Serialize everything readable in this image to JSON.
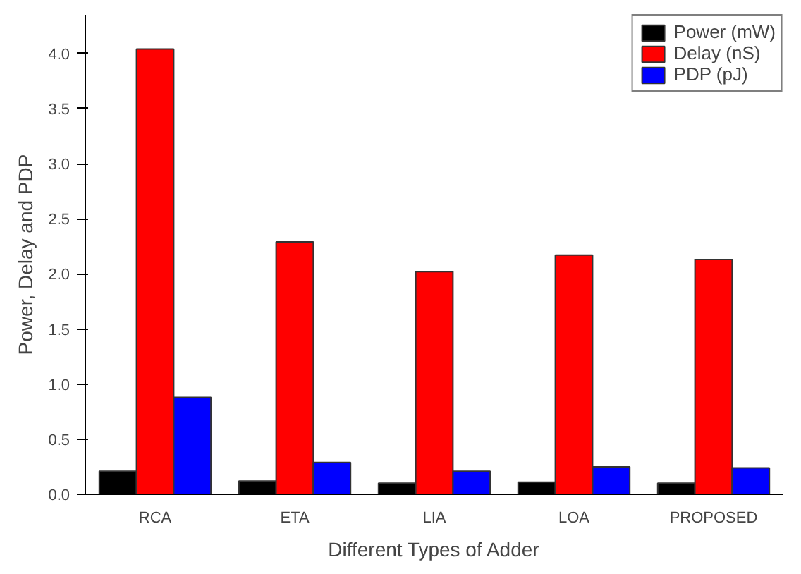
{
  "chart_data": {
    "type": "bar",
    "xlabel": "Different Types of Adder",
    "ylabel": "Power, Delay and PDP",
    "categories": [
      "RCA",
      "ETA",
      "LIA",
      "LOA",
      "PROPOSED"
    ],
    "series": [
      {
        "name": "Power (mW)",
        "color": "#000000",
        "values": [
          0.21,
          0.12,
          0.1,
          0.11,
          0.1
        ]
      },
      {
        "name": "Delay (nS)",
        "color": "#ff0000",
        "values": [
          4.04,
          2.29,
          2.02,
          2.17,
          2.13
        ]
      },
      {
        "name": "PDP (pJ)",
        "color": "#0000ff",
        "values": [
          0.88,
          0.29,
          0.21,
          0.25,
          0.24
        ]
      }
    ],
    "ylim": [
      0,
      4.35
    ],
    "yticks": [
      {
        "value": 0,
        "label": "0.0"
      },
      0.5,
      {
        "value": 1,
        "label": "1.0"
      },
      1.5,
      {
        "value": 2,
        "label": "2.0"
      },
      2.5,
      {
        "value": 3,
        "label": "3.0"
      },
      3.5,
      {
        "value": 4,
        "label": "4.0"
      }
    ],
    "legend": "top right"
  }
}
